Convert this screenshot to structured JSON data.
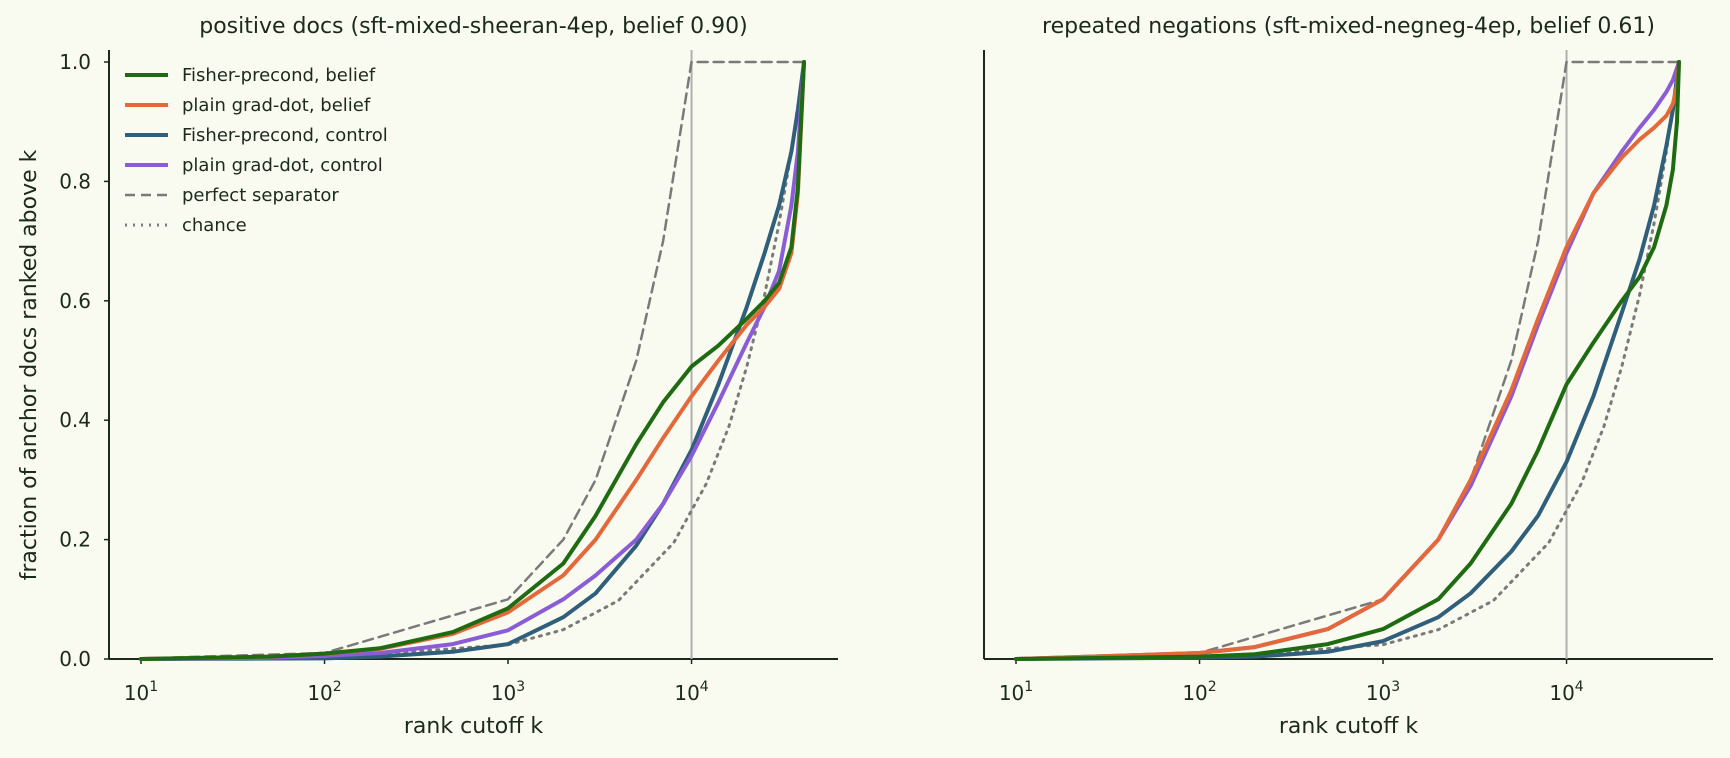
{
  "figure": {
    "ylabel": "fraction of anchor docs ranked above k"
  },
  "colors": {
    "fisher_belief": "#1e6b12",
    "plain_belief": "#e3683a",
    "fisher_control": "#2f5f7a",
    "plain_control": "#8a5cd6",
    "perfect": "#7a7a7a",
    "chance": "#7a7a7a",
    "threshold": "#b0b0b0",
    "axes": "#1b2a1b"
  },
  "legend": [
    {
      "name": "Fisher-precond, belief",
      "color": "#1e6b12",
      "dash": "solid"
    },
    {
      "name": "plain grad-dot, belief",
      "color": "#e3683a",
      "dash": "solid"
    },
    {
      "name": "Fisher-precond, control",
      "color": "#2f5f7a",
      "dash": "solid"
    },
    {
      "name": "plain grad-dot, control",
      "color": "#8a5cd6",
      "dash": "solid"
    },
    {
      "name": "perfect separator",
      "color": "#7a7a7a",
      "dash": "dashed"
    },
    {
      "name": "chance",
      "color": "#7a7a7a",
      "dash": "dotted"
    }
  ],
  "chart_data": [
    {
      "type": "line",
      "title": "positive docs (sft-mixed-sheeran-4ep, belief 0.90)",
      "xlabel": "rank cutoff k",
      "ylabel": "fraction of anchor docs ranked above k",
      "xscale": "log",
      "xlim": [
        10,
        45000
      ],
      "ylim": [
        0,
        1.0
      ],
      "xticks": [
        10,
        100,
        1000,
        10000
      ],
      "xtick_labels": [
        [
          "10",
          "1"
        ],
        [
          "10",
          "2"
        ],
        [
          "10",
          "3"
        ],
        [
          "10",
          "4"
        ]
      ],
      "yticks": [
        "0.0",
        "0.2",
        "0.4",
        "0.6",
        "0.8",
        "1.0"
      ],
      "legend_position": "top-left",
      "vline": 10000,
      "series": [
        {
          "name": "Fisher-precond, belief",
          "key": "fisher_belief",
          "x": [
            10,
            50,
            100,
            200,
            500,
            1000,
            2000,
            3000,
            5000,
            7000,
            10000,
            14000,
            20000,
            25000,
            30000,
            35000,
            38000,
            41000
          ],
          "y": [
            0.0,
            0.004,
            0.009,
            0.018,
            0.045,
            0.085,
            0.16,
            0.24,
            0.36,
            0.43,
            0.49,
            0.525,
            0.57,
            0.6,
            0.63,
            0.69,
            0.79,
            1.0
          ]
        },
        {
          "name": "plain grad-dot, belief",
          "key": "plain_belief",
          "x": [
            10,
            50,
            100,
            200,
            500,
            1000,
            2000,
            3000,
            5000,
            7000,
            10000,
            14000,
            20000,
            25000,
            30000,
            35000,
            38000,
            41000
          ],
          "y": [
            0.0,
            0.004,
            0.009,
            0.017,
            0.042,
            0.078,
            0.14,
            0.2,
            0.3,
            0.37,
            0.44,
            0.5,
            0.56,
            0.59,
            0.62,
            0.68,
            0.78,
            1.0
          ]
        },
        {
          "name": "Fisher-precond, control",
          "key": "fisher_control",
          "x": [
            10,
            100,
            200,
            500,
            1000,
            2000,
            3000,
            5000,
            7000,
            10000,
            14000,
            20000,
            25000,
            30000,
            35000,
            38000,
            41000
          ],
          "y": [
            0.0,
            0.001,
            0.004,
            0.012,
            0.025,
            0.07,
            0.11,
            0.19,
            0.26,
            0.35,
            0.46,
            0.59,
            0.68,
            0.76,
            0.85,
            0.92,
            1.0
          ]
        },
        {
          "name": "plain grad-dot, control",
          "key": "plain_control",
          "x": [
            10,
            50,
            100,
            200,
            500,
            1000,
            2000,
            3000,
            5000,
            7000,
            10000,
            14000,
            20000,
            25000,
            30000,
            35000,
            38000,
            41000
          ],
          "y": [
            0.0,
            0.002,
            0.005,
            0.01,
            0.025,
            0.048,
            0.1,
            0.14,
            0.2,
            0.26,
            0.34,
            0.43,
            0.53,
            0.59,
            0.65,
            0.76,
            0.85,
            1.0
          ]
        },
        {
          "name": "perfect separator",
          "key": "perfect",
          "dash": "dashed",
          "x": [
            10,
            100,
            1000,
            2000,
            3000,
            5000,
            7000,
            10000,
            41000
          ],
          "y": [
            0.001,
            0.01,
            0.1,
            0.2,
            0.3,
            0.5,
            0.7,
            1.0,
            1.0
          ]
        },
        {
          "name": "chance",
          "key": "chance",
          "dash": "dotted",
          "x": [
            10,
            100,
            1000,
            2000,
            4000,
            8000,
            12000,
            16000,
            20000,
            25000,
            30000,
            35000,
            41000
          ],
          "y": [
            0.0,
            0.002,
            0.024,
            0.049,
            0.098,
            0.195,
            0.293,
            0.39,
            0.49,
            0.61,
            0.73,
            0.85,
            1.0
          ]
        }
      ]
    },
    {
      "type": "line",
      "title": "repeated negations (sft-mixed-negneg-4ep, belief 0.61)",
      "xlabel": "rank cutoff k",
      "ylabel": "",
      "xscale": "log",
      "xlim": [
        10,
        45000
      ],
      "ylim": [
        0,
        1.0
      ],
      "xticks": [
        10,
        100,
        1000,
        10000
      ],
      "xtick_labels": [
        [
          "10",
          "1"
        ],
        [
          "10",
          "2"
        ],
        [
          "10",
          "3"
        ],
        [
          "10",
          "4"
        ]
      ],
      "yticks": [],
      "vline": 10000,
      "series": [
        {
          "name": "Fisher-precond, belief",
          "key": "fisher_belief",
          "x": [
            10,
            100,
            200,
            500,
            1000,
            2000,
            3000,
            5000,
            7000,
            10000,
            14000,
            20000,
            25000,
            30000,
            35000,
            38000,
            40000,
            41000
          ],
          "y": [
            0.0,
            0.004,
            0.008,
            0.025,
            0.05,
            0.1,
            0.16,
            0.26,
            0.35,
            0.46,
            0.53,
            0.6,
            0.64,
            0.69,
            0.76,
            0.82,
            0.9,
            1.0
          ]
        },
        {
          "name": "plain grad-dot, belief",
          "key": "plain_belief",
          "x": [
            10,
            100,
            200,
            500,
            1000,
            2000,
            3000,
            5000,
            7000,
            10000,
            14000,
            20000,
            25000,
            30000,
            35000,
            38000,
            40000,
            41000
          ],
          "y": [
            0.0,
            0.01,
            0.02,
            0.05,
            0.1,
            0.2,
            0.3,
            0.45,
            0.57,
            0.69,
            0.78,
            0.84,
            0.87,
            0.89,
            0.91,
            0.93,
            0.96,
            1.0
          ]
        },
        {
          "name": "Fisher-precond, control",
          "key": "fisher_control",
          "x": [
            10,
            100,
            200,
            500,
            1000,
            2000,
            3000,
            5000,
            7000,
            10000,
            14000,
            20000,
            25000,
            30000,
            35000,
            38000,
            41000
          ],
          "y": [
            0.0,
            0.002,
            0.004,
            0.012,
            0.03,
            0.07,
            0.11,
            0.18,
            0.24,
            0.33,
            0.44,
            0.58,
            0.67,
            0.76,
            0.86,
            0.92,
            1.0
          ]
        },
        {
          "name": "plain grad-dot, control",
          "key": "plain_control",
          "x": [
            10,
            100,
            200,
            500,
            1000,
            2000,
            3000,
            5000,
            7000,
            10000,
            14000,
            20000,
            25000,
            30000,
            35000,
            38000,
            41000
          ],
          "y": [
            0.0,
            0.01,
            0.02,
            0.05,
            0.1,
            0.2,
            0.29,
            0.44,
            0.56,
            0.68,
            0.78,
            0.85,
            0.89,
            0.92,
            0.95,
            0.97,
            1.0
          ]
        },
        {
          "name": "perfect separator",
          "key": "perfect",
          "dash": "dashed",
          "x": [
            10,
            100,
            1000,
            2000,
            3000,
            5000,
            7000,
            10000,
            41000
          ],
          "y": [
            0.001,
            0.01,
            0.1,
            0.2,
            0.3,
            0.5,
            0.7,
            1.0,
            1.0
          ]
        },
        {
          "name": "chance",
          "key": "chance",
          "dash": "dotted",
          "x": [
            10,
            100,
            1000,
            2000,
            4000,
            8000,
            12000,
            16000,
            20000,
            25000,
            30000,
            35000,
            41000
          ],
          "y": [
            0.0,
            0.002,
            0.024,
            0.049,
            0.098,
            0.195,
            0.293,
            0.39,
            0.49,
            0.61,
            0.73,
            0.85,
            1.0
          ]
        }
      ]
    }
  ]
}
